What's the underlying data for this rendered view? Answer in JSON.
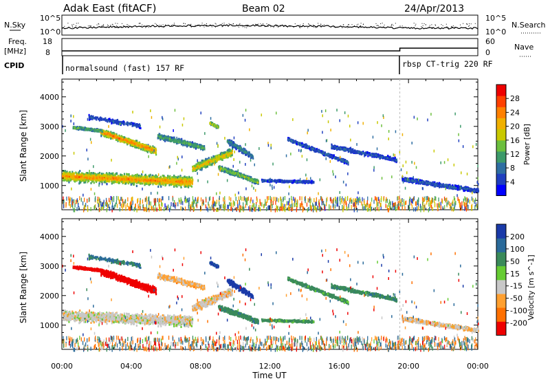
{
  "header": {
    "station": "Adak East (fitACF)",
    "beam": "Beam 02",
    "date": "24/Apr/2013"
  },
  "strip_labels": {
    "nsky": "N.Sky",
    "nsky_ticks": [
      "10^5",
      "10^0"
    ],
    "nsearch": "N.Search",
    "nsearch_ticks": [
      "10^5",
      "10^0"
    ],
    "freq": "Freq.",
    "freq_unit": "[MHz]",
    "freq_ticks": [
      "18",
      "8"
    ],
    "nave": "Nave",
    "nave_ticks": [
      "60",
      "0"
    ],
    "cpid": "CPID"
  },
  "cpid_segments": [
    {
      "label": "normalsound (fast) 157 RF",
      "start_hour": 0,
      "end_hour": 19.5
    },
    {
      "label": "rbsp CT-trig 220 RF",
      "start_hour": 19.5,
      "end_hour": 24
    }
  ],
  "chart_data": [
    {
      "type": "heatmap",
      "title": "",
      "xlabel": "Time UT",
      "ylabel": "Slant Range [km]",
      "x_ticks": [
        "00:00",
        "04:00",
        "08:00",
        "12:00",
        "16:00",
        "20:00",
        "00:00"
      ],
      "xlim_hours": [
        0,
        24
      ],
      "y_ticks": [
        "1000",
        "2000",
        "3000",
        "4000"
      ],
      "ylim": [
        180,
        4600
      ],
      "colorbar_label": "Power [dB]",
      "colorbar_ticks": [
        "28",
        "24",
        "20",
        "16",
        "12",
        "8",
        "4"
      ],
      "colorbar_range": [
        0,
        32
      ],
      "colors": [
        "#0000ff",
        "#1f3fbf",
        "#2e6ea2",
        "#3d9a6a",
        "#6cbf3e",
        "#c9c900",
        "#f0b000",
        "#ff8000",
        "#ff4000",
        "#ee0000"
      ]
    },
    {
      "type": "heatmap",
      "title": "",
      "xlabel": "Time UT",
      "ylabel": "Slant Range [km]",
      "x_ticks": [
        "00:00",
        "04:00",
        "08:00",
        "12:00",
        "16:00",
        "20:00",
        "00:00"
      ],
      "xlim_hours": [
        0,
        24
      ],
      "y_ticks": [
        "1000",
        "2000",
        "3000",
        "4000"
      ],
      "ylim": [
        180,
        4600
      ],
      "colorbar_label": "Velocity [m s^-1]",
      "colorbar_ticks": [
        "200",
        "100",
        "50",
        "15",
        "-15",
        "-50",
        "-100",
        "-200"
      ],
      "colors": [
        "#1a3aa8",
        "#2a6a9a",
        "#3a8a5a",
        "#66cc33",
        "#c8c8c8",
        "#ffa030",
        "#ff7000",
        "#ee0000"
      ]
    }
  ]
}
